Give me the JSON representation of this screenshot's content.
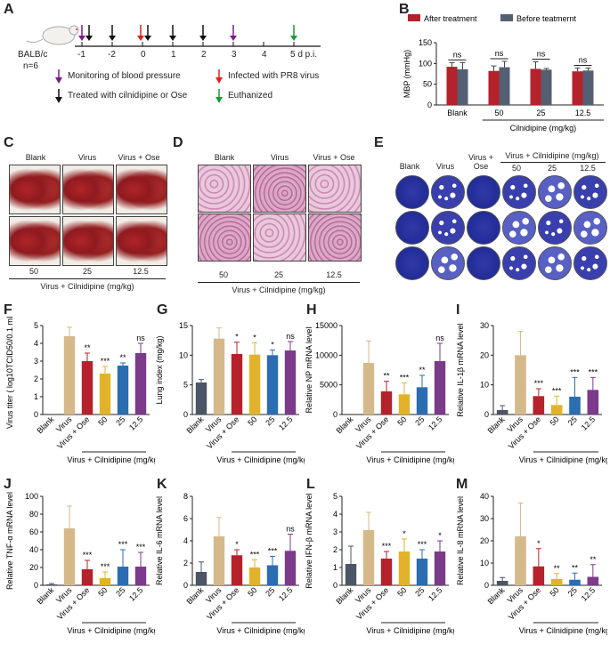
{
  "panels": {
    "A": "A",
    "B": "B",
    "C": "C",
    "D": "D",
    "E": "E",
    "F": "F",
    "G": "G",
    "H": "H",
    "I": "I",
    "J": "J",
    "K": "K",
    "L": "L",
    "M": "M"
  },
  "timeline": {
    "mouse_label": "BALB/c",
    "n_label": "n=6",
    "ticks": [
      "-1",
      "-2",
      "0",
      "1",
      "2",
      "3",
      "4",
      "5 d p.i."
    ],
    "legend": {
      "bp": "Monitoring of blood pressure",
      "virus": "Infected with PR8 virus",
      "treat": "Treated with cilnidipine or Ose",
      "euth": "Euthanized"
    },
    "colors": {
      "purple": "#7a1a8c",
      "red": "#e0201a",
      "black": "#111111",
      "green": "#1a9a3a"
    }
  },
  "panelC": {
    "top": [
      "Blank",
      "Virus",
      "Virus + Ose"
    ],
    "bottom": [
      "50",
      "25",
      "12.5"
    ],
    "footer": "Virus + Cilnidipine (mg/kg)"
  },
  "panelD": {
    "top": [
      "Blank",
      "Virus",
      "Virus + Ose"
    ],
    "bottom": [
      "50",
      "25",
      "12.5"
    ],
    "footer": "Virus + Cilnidipine (mg/kg)"
  },
  "panelE": {
    "cols": [
      "Blank",
      "Virus",
      "Virus + Ose"
    ],
    "group": "Virus + Cilnidipine (mg/kg)",
    "doses": [
      "50",
      "25",
      "12.5"
    ]
  },
  "chart_data": [
    {
      "id": "B",
      "type": "bar",
      "categories": [
        "Blank",
        "50",
        "25",
        "12.5"
      ],
      "series": [
        {
          "name": "After treatment",
          "color": "#b5222c",
          "values": [
            92,
            82,
            87,
            81
          ],
          "errors": [
            10,
            12,
            17,
            8
          ]
        },
        {
          "name": "Before teatmernt",
          "color": "#546071",
          "values": [
            86,
            91,
            85,
            83
          ],
          "errors": [
            16,
            14,
            3,
            6
          ]
        }
      ],
      "ylabel": "MBP (mmHg)",
      "ylim": [
        0,
        150
      ],
      "yticks": [
        "0",
        "50",
        "100",
        "150"
      ],
      "annotations": [
        "ns",
        "ns",
        "ns",
        "ns"
      ],
      "xgroup": "Cilnidipine (mg/kg)"
    },
    {
      "id": "F",
      "type": "bar",
      "categories": [
        "Blank",
        "Virus",
        "Virus + Ose",
        "50",
        "25",
        "12.5"
      ],
      "values": [
        0,
        4.4,
        3.0,
        2.3,
        2.75,
        3.45
      ],
      "errors": [
        0,
        0.5,
        0.45,
        0.4,
        0.15,
        0.55
      ],
      "colors": [
        "#cccccc",
        "#d6b98a",
        "#b5222c",
        "#e2b32a",
        "#2a6db0",
        "#7b3a8a"
      ],
      "sig": [
        "",
        "",
        "**",
        "***",
        "**",
        "ns"
      ],
      "ylabel": "Virus titer ( log10TCID50/0.1 mL)",
      "ylim": [
        0,
        5
      ],
      "yticks": [
        "0",
        "1",
        "2",
        "3",
        "4",
        "5"
      ],
      "xgroup": "Virus + Cilnidipine (mg/kg)"
    },
    {
      "id": "G",
      "type": "bar",
      "categories": [
        "Blank",
        "Virus",
        "Virus + Ose",
        "50",
        "25",
        "12.5"
      ],
      "values": [
        5.4,
        12.8,
        10.2,
        10.1,
        10.0,
        10.8
      ],
      "errors": [
        0.5,
        1.8,
        2.0,
        2.0,
        0.9,
        1.5
      ],
      "colors": [
        "#4b5565",
        "#d6b98a",
        "#b5222c",
        "#e2b32a",
        "#2a6db0",
        "#7b3a8a"
      ],
      "sig": [
        "",
        "",
        "*",
        "*",
        "*",
        "ns"
      ],
      "ylabel": "Lung index (mg/kg)",
      "ylim": [
        0,
        15
      ],
      "yticks": [
        "0",
        "5",
        "10",
        "15"
      ],
      "xgroup": "Virus + Cilnidipine (mg/kg)"
    },
    {
      "id": "H",
      "type": "bar",
      "categories": [
        "Blank",
        "Virus",
        "Virus + Ose",
        "50",
        "25",
        "12.5"
      ],
      "values": [
        0,
        8700,
        3900,
        3400,
        4600,
        9000
      ],
      "errors": [
        0,
        3700,
        1700,
        1900,
        2000,
        3000
      ],
      "colors": [
        "#cccccc",
        "#d6b98a",
        "#b5222c",
        "#e2b32a",
        "#2a6db0",
        "#7b3a8a"
      ],
      "sig": [
        "",
        "",
        "**",
        "***",
        "**",
        "ns"
      ],
      "ylabel": "Relative NP mRNA level",
      "ylim": [
        0,
        15000
      ],
      "yticks": [
        "0",
        "5000",
        "10000",
        "15000"
      ],
      "xgroup": "Virus + Cilnidipine (mg/kg)"
    },
    {
      "id": "I",
      "type": "bar",
      "categories": [
        "Blank",
        "Virus",
        "Virus + Ose",
        "50",
        "25",
        "12.5"
      ],
      "values": [
        1.5,
        20,
        6.2,
        3.2,
        6.0,
        8.3
      ],
      "errors": [
        1.5,
        8,
        2.5,
        3.0,
        6.5,
        4.2
      ],
      "colors": [
        "#4b5565",
        "#d6b98a",
        "#b5222c",
        "#e2b32a",
        "#2a6db0",
        "#7b3a8a"
      ],
      "sig": [
        "",
        "",
        "***",
        "***",
        "***",
        "***"
      ],
      "ylabel": "Relative IL-1β mRNA level",
      "ylim": [
        0,
        30
      ],
      "yticks": [
        "0",
        "10",
        "20",
        "30"
      ],
      "xgroup": "Virus + Cilnidipine (mg/kg)"
    },
    {
      "id": "J",
      "type": "bar",
      "categories": [
        "Blank",
        "Virus",
        "Virus + Ose",
        "50",
        "25",
        "12.5"
      ],
      "values": [
        1,
        64,
        18,
        8,
        21,
        21
      ],
      "errors": [
        1,
        25,
        10,
        7,
        19,
        16
      ],
      "colors": [
        "#4b5565",
        "#d6b98a",
        "#b5222c",
        "#e2b32a",
        "#2a6db0",
        "#7b3a8a"
      ],
      "sig": [
        "",
        "",
        "***",
        "***",
        "***",
        "***"
      ],
      "ylabel": "Relative TNF-α mRNA level",
      "ylim": [
        0,
        100
      ],
      "yticks": [
        "0",
        "20",
        "40",
        "60",
        "80",
        "100"
      ],
      "xgroup": "Virus + Cilnidipine (mg/kg)"
    },
    {
      "id": "K",
      "type": "bar",
      "categories": [
        "Blank",
        "Virus",
        "Virus + Ose",
        "50",
        "25",
        "12.5"
      ],
      "values": [
        1.2,
        4.4,
        2.7,
        1.6,
        1.8,
        3.1
      ],
      "errors": [
        0.9,
        1.7,
        0.5,
        0.7,
        0.8,
        1.5
      ],
      "colors": [
        "#4b5565",
        "#d6b98a",
        "#b5222c",
        "#e2b32a",
        "#2a6db0",
        "#7b3a8a"
      ],
      "sig": [
        "",
        "",
        "*",
        "***",
        "***",
        "ns"
      ],
      "ylabel": "Relative IL-6 mRNA level",
      "ylim": [
        0,
        8
      ],
      "yticks": [
        "0",
        "2",
        "4",
        "6",
        "8"
      ],
      "xgroup": "Virus + Cilnidipine (mg/kg)"
    },
    {
      "id": "L",
      "type": "bar",
      "categories": [
        "Blank",
        "Virus",
        "Virus + Ose",
        "50",
        "25",
        "12.5"
      ],
      "values": [
        1.2,
        3.1,
        1.5,
        1.9,
        1.5,
        1.9
      ],
      "errors": [
        1.0,
        1.0,
        0.4,
        0.7,
        0.5,
        0.6
      ],
      "colors": [
        "#4b5565",
        "#d6b98a",
        "#b5222c",
        "#e2b32a",
        "#2a6db0",
        "#7b3a8a"
      ],
      "sig": [
        "",
        "",
        "***",
        "*",
        "***",
        "*"
      ],
      "ylabel": "Relative IFN-β mRNA level",
      "ylim": [
        0,
        5
      ],
      "yticks": [
        "0",
        "1",
        "2",
        "3",
        "4",
        "5"
      ],
      "xgroup": "Virus + Cilnidipine (mg/kg)"
    },
    {
      "id": "M",
      "type": "bar",
      "categories": [
        "Blank",
        "Virus",
        "Virus + Ose",
        "50",
        "25",
        "12.5"
      ],
      "values": [
        2,
        22,
        8.5,
        2.8,
        2.5,
        3.8
      ],
      "errors": [
        1.5,
        15,
        8,
        2.5,
        3,
        5.5
      ],
      "colors": [
        "#4b5565",
        "#d6b98a",
        "#b5222c",
        "#e2b32a",
        "#2a6db0",
        "#7b3a8a"
      ],
      "sig": [
        "",
        "",
        "*",
        "**",
        "**",
        "**"
      ],
      "ylabel": "Relative IL-8 mRNA level",
      "ylim": [
        0,
        40
      ],
      "yticks": [
        "0",
        "10",
        "20",
        "30",
        "40"
      ],
      "xgroup": "Virus + Cilnidipine (mg/kg)"
    }
  ]
}
